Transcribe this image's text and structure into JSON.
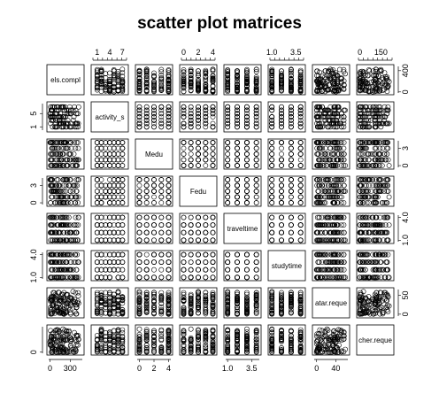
{
  "chart_data": {
    "type": "scatter",
    "title": "scatter plot matrices",
    "variables": [
      {
        "label": "els.compl",
        "ticks": [
          "0",
          "300"
        ],
        "tick_values": [
          0,
          300
        ],
        "range": [
          -20,
          480
        ]
      },
      {
        "label": "activity_s",
        "ticks": [
          "1",
          "4",
          "7"
        ],
        "tick_values": [
          1,
          4,
          7
        ],
        "range": [
          0,
          8
        ]
      },
      {
        "label": "Medu",
        "ticks": [
          "0",
          "2",
          "4"
        ],
        "tick_values": [
          0,
          2,
          4
        ],
        "range": [
          -0.3,
          4.3
        ]
      },
      {
        "label": "Fedu",
        "ticks": [
          "0",
          "2",
          "4"
        ],
        "tick_values": [
          0,
          2,
          4
        ],
        "range": [
          -0.3,
          4.3
        ]
      },
      {
        "label": "traveltime",
        "ticks": [
          "1.0",
          "3.5"
        ],
        "tick_values": [
          1.0,
          3.5
        ],
        "range": [
          0.8,
          4.3
        ]
      },
      {
        "label": "studytime",
        "ticks": [
          "1.0",
          "3.5"
        ],
        "tick_values": [
          1.0,
          3.5
        ],
        "range": [
          0.8,
          4.3
        ]
      },
      {
        "label": "atar.reque",
        "ticks": [
          "0",
          "40"
        ],
        "tick_values": [
          0,
          40
        ],
        "range": [
          -5,
          65
        ]
      },
      {
        "label": "cher.reque",
        "ticks": [
          "0",
          "150"
        ],
        "tick_values": [
          0,
          150
        ],
        "range": [
          -10,
          230
        ]
      }
    ],
    "axis_labels": {
      "top": {
        "2": [
          "1",
          "4",
          "7"
        ],
        "4": [
          "0",
          "2",
          "4"
        ],
        "6": [
          "1.0",
          "3.5"
        ],
        "8": [
          "0",
          "150"
        ]
      },
      "bottom": {
        "1": [
          "0",
          "300"
        ],
        "3": [
          "0",
          "2",
          "4"
        ],
        "5": [
          "1.0",
          "3.5"
        ],
        "7": [
          "0",
          "40"
        ]
      },
      "left": {
        "2": [
          "1",
          "5"
        ],
        "4": [
          "0",
          "3"
        ],
        "6": [
          "1.0",
          "4.0"
        ],
        "8": [
          "0"
        ]
      },
      "right": {
        "1": [
          "0",
          "400"
        ],
        "3": [
          "0",
          "3"
        ],
        "5": [
          "1.0",
          "4.0"
        ],
        "7": [
          "0",
          "50"
        ]
      }
    },
    "marker": "open-circle",
    "grid": false,
    "legend": "none"
  }
}
